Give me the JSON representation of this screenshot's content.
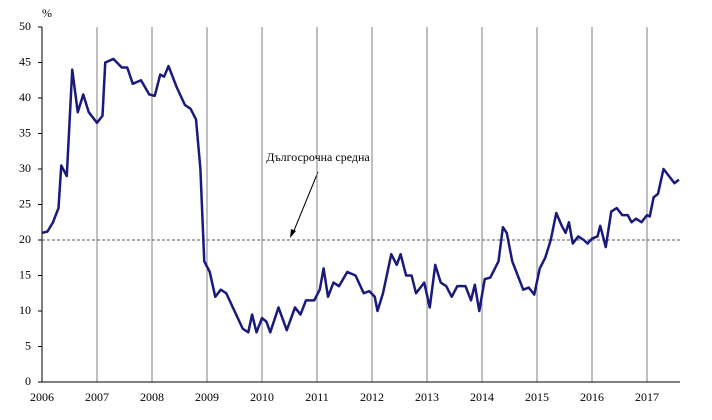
{
  "chart_data": {
    "type": "line",
    "ylabel": "%",
    "xlim": [
      2006,
      2017.6
    ],
    "xticks": [
      2006,
      2007,
      2008,
      2009,
      2010,
      2011,
      2012,
      2013,
      2014,
      2015,
      2016,
      2017
    ],
    "ylim": [
      0,
      50
    ],
    "yticks": [
      0,
      5,
      10,
      15,
      20,
      25,
      30,
      35,
      40,
      45,
      50
    ],
    "grid": true,
    "reference_line": {
      "value": 20,
      "label": "Дългосрочна средна",
      "color": "#595959"
    },
    "series": [
      {
        "color": "#1a1a7a",
        "x": [
          2006.0,
          2006.1,
          2006.2,
          2006.3,
          2006.35,
          2006.45,
          2006.55,
          2006.65,
          2006.75,
          2006.85,
          2007.0,
          2007.1,
          2007.15,
          2007.3,
          2007.45,
          2007.55,
          2007.65,
          2007.8,
          2007.95,
          2008.05,
          2008.15,
          2008.22,
          2008.3,
          2008.45,
          2008.6,
          2008.7,
          2008.8,
          2008.88,
          2008.95,
          2009.05,
          2009.15,
          2009.25,
          2009.35,
          2009.5,
          2009.65,
          2009.75,
          2009.82,
          2009.9,
          2010.0,
          2010.08,
          2010.15,
          2010.3,
          2010.45,
          2010.6,
          2010.7,
          2010.8,
          2010.95,
          2011.05,
          2011.12,
          2011.2,
          2011.3,
          2011.4,
          2011.55,
          2011.7,
          2011.85,
          2011.95,
          2012.05,
          2012.1,
          2012.2,
          2012.35,
          2012.45,
          2012.52,
          2012.62,
          2012.72,
          2012.8,
          2012.95,
          2013.05,
          2013.15,
          2013.25,
          2013.35,
          2013.45,
          2013.55,
          2013.7,
          2013.8,
          2013.87,
          2013.95,
          2014.05,
          2014.15,
          2014.3,
          2014.38,
          2014.45,
          2014.55,
          2014.65,
          2014.75,
          2014.85,
          2014.95,
          2015.05,
          2015.15,
          2015.25,
          2015.35,
          2015.45,
          2015.52,
          2015.58,
          2015.65,
          2015.75,
          2015.85,
          2015.92,
          2016.0,
          2016.1,
          2016.15,
          2016.25,
          2016.35,
          2016.45,
          2016.55,
          2016.65,
          2016.72,
          2016.8,
          2016.9,
          2017.0,
          2017.05,
          2017.12,
          2017.2,
          2017.3,
          2017.4,
          2017.5,
          2017.58
        ],
        "values": [
          21,
          21.2,
          22.5,
          24.5,
          30.5,
          29,
          44,
          38,
          40.5,
          38,
          36.5,
          37.5,
          45,
          45.5,
          44.3,
          44.3,
          42,
          42.5,
          40.5,
          40.3,
          43.3,
          43,
          44.5,
          41.5,
          39,
          38.5,
          37,
          30,
          17,
          15.5,
          12,
          13,
          12.5,
          10,
          7.5,
          7,
          9.5,
          7,
          9,
          8.5,
          7,
          10.5,
          7.3,
          10.5,
          9.5,
          11.5,
          11.5,
          13,
          16,
          12,
          14,
          13.5,
          15.5,
          15,
          12.5,
          12.8,
          12,
          10,
          12.5,
          18,
          16.5,
          18,
          15,
          15,
          12.5,
          14,
          10.5,
          16.5,
          14,
          13.5,
          12,
          13.5,
          13.5,
          11.5,
          13.7,
          10,
          14.5,
          14.7,
          17,
          21.8,
          21,
          17,
          15,
          13,
          13.3,
          12.3,
          16,
          17.5,
          20,
          23.8,
          22,
          21,
          22.5,
          19.5,
          20.5,
          20,
          19.5,
          20.2,
          20.5,
          22,
          19,
          24,
          24.5,
          23.5,
          23.5,
          22.5,
          23,
          22.5,
          23.5,
          23.3,
          26,
          26.5,
          30,
          29,
          28,
          28.5
        ]
      }
    ]
  }
}
